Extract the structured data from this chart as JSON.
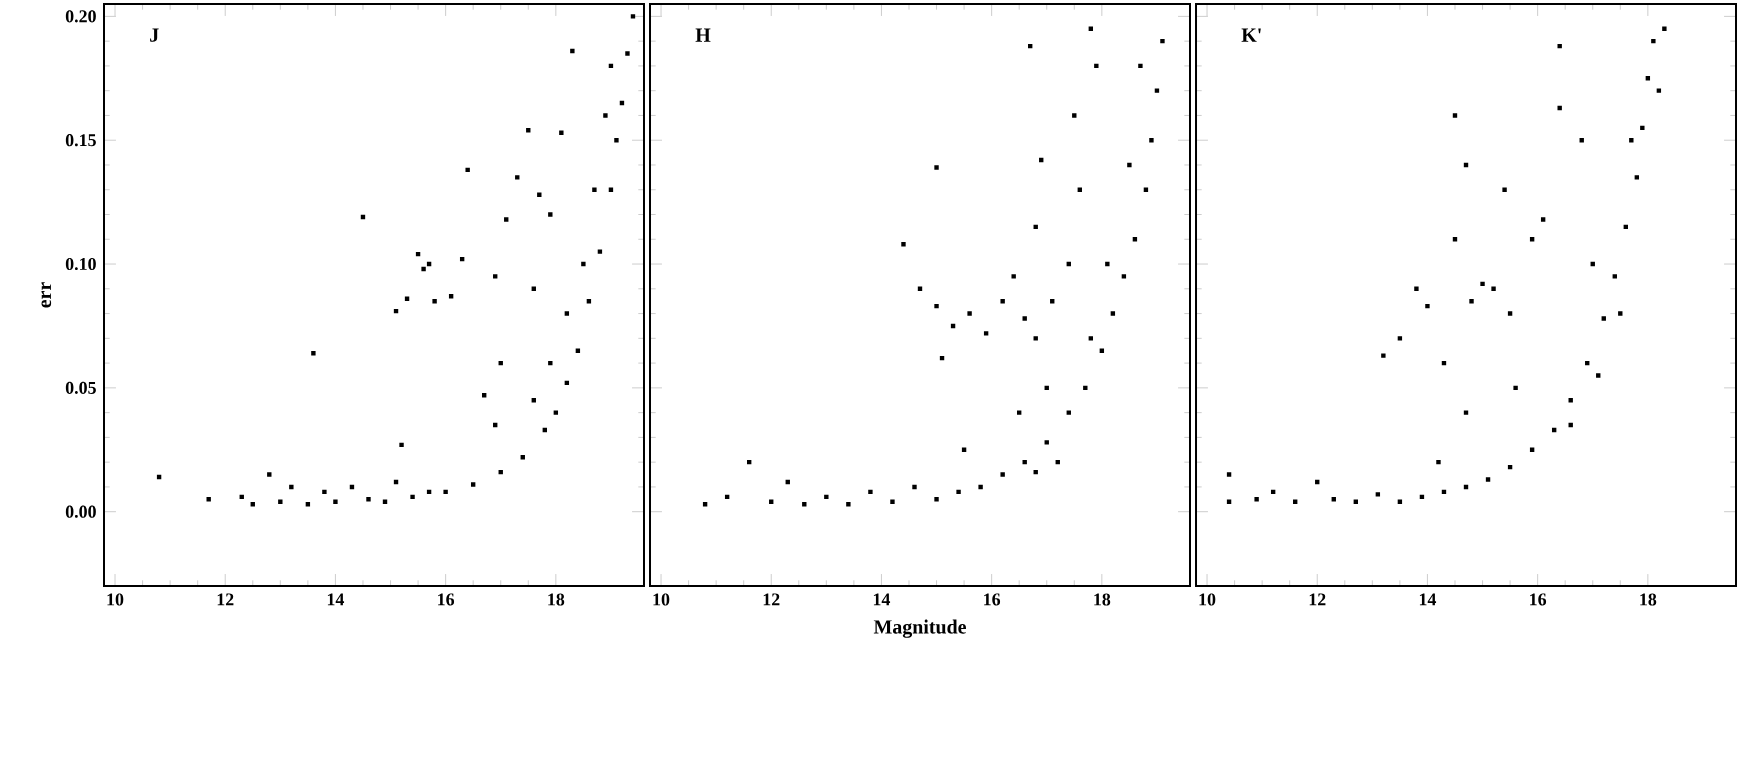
{
  "chart_data": [
    {
      "type": "scatter",
      "title": "J",
      "ylabel": "err",
      "xlim": [
        9.8,
        19.6
      ],
      "ylim": [
        -0.03,
        0.205
      ],
      "xticks": [
        10,
        12,
        14,
        16,
        18
      ],
      "yticks": [
        {
          "value": 0,
          "label": "0.00"
        },
        {
          "value": 0.05,
          "label": "0.05"
        },
        {
          "value": 0.1,
          "label": "0.10"
        },
        {
          "value": 0.15,
          "label": "0.15"
        },
        {
          "value": 0.2,
          "label": "0.20"
        }
      ],
      "marker": "square",
      "color": "#000000",
      "x": [
        10.8,
        11.7,
        13.6,
        14.5,
        15.1,
        15.3,
        15.5,
        15.6,
        15.7,
        15.8,
        16.1,
        16.3,
        16.4,
        15.2,
        16.7,
        16.9,
        17.1,
        17.5,
        18.1,
        18.3,
        17.3,
        17.7,
        17.9,
        17.6,
        17.0,
        16.9,
        12.3,
        12.5,
        12.8,
        13.0,
        13.2,
        13.5,
        13.8,
        14.0,
        14.3,
        14.6,
        14.9,
        15.1,
        15.4,
        15.7,
        16.0,
        16.5,
        17.0,
        17.4,
        17.8,
        18.0,
        18.2,
        18.4,
        18.6,
        18.8,
        19.0,
        19.1,
        19.2,
        19.3,
        19.4,
        17.6,
        17.9,
        18.2,
        18.5,
        18.7,
        18.9,
        19.0
      ],
      "values": [
        0.014,
        0.005,
        0.064,
        0.119,
        0.081,
        0.086,
        0.104,
        0.098,
        0.1,
        0.085,
        0.087,
        0.102,
        0.138,
        0.027,
        0.047,
        0.095,
        0.118,
        0.154,
        0.153,
        0.186,
        0.135,
        0.128,
        0.12,
        0.09,
        0.06,
        0.035,
        0.006,
        0.003,
        0.015,
        0.004,
        0.01,
        0.003,
        0.008,
        0.004,
        0.01,
        0.005,
        0.004,
        0.012,
        0.006,
        0.008,
        0.008,
        0.011,
        0.016,
        0.022,
        0.033,
        0.04,
        0.052,
        0.065,
        0.085,
        0.105,
        0.13,
        0.15,
        0.165,
        0.185,
        0.2,
        0.045,
        0.06,
        0.08,
        0.1,
        0.13,
        0.16,
        0.18
      ]
    },
    {
      "type": "scatter",
      "title": "H",
      "xlabel": "Magnitude",
      "tick_labels": "x",
      "xlim": [
        9.8,
        19.6
      ],
      "ylim": [
        -0.03,
        0.205
      ],
      "xticks": [
        10,
        12,
        14,
        16,
        18
      ],
      "yticks": [
        {
          "value": 0,
          "label": null
        },
        {
          "value": 0.05,
          "label": null
        },
        {
          "value": 0.1,
          "label": null
        },
        {
          "value": 0.15,
          "label": null
        },
        {
          "value": 0.2,
          "label": null
        }
      ],
      "marker": "square",
      "color": "#000000",
      "x": [
        10.8,
        11.2,
        11.6,
        12.0,
        12.3,
        12.6,
        13.0,
        13.4,
        13.8,
        14.2,
        14.6,
        15.0,
        15.4,
        15.8,
        16.2,
        16.6,
        17.0,
        17.4,
        17.7,
        18.0,
        18.2,
        18.4,
        18.6,
        18.8,
        18.9,
        19.0,
        19.1,
        17.8,
        18.1,
        18.5,
        18.7,
        17.2,
        16.8,
        14.4,
        14.7,
        15.0,
        15.1,
        15.3,
        15.6,
        15.9,
        16.2,
        16.4,
        16.6,
        16.8,
        17.1,
        17.4,
        16.8,
        15.0,
        16.9,
        17.6,
        17.5,
        17.9,
        17.8,
        16.7,
        17.0,
        16.5,
        15.5
      ],
      "values": [
        0.003,
        0.006,
        0.02,
        0.004,
        0.012,
        0.003,
        0.006,
        0.003,
        0.008,
        0.004,
        0.01,
        0.005,
        0.008,
        0.01,
        0.015,
        0.02,
        0.028,
        0.04,
        0.05,
        0.065,
        0.08,
        0.095,
        0.11,
        0.13,
        0.15,
        0.17,
        0.19,
        0.07,
        0.1,
        0.14,
        0.18,
        0.02,
        0.016,
        0.108,
        0.09,
        0.083,
        0.062,
        0.075,
        0.08,
        0.072,
        0.085,
        0.095,
        0.078,
        0.07,
        0.085,
        0.1,
        0.115,
        0.139,
        0.142,
        0.13,
        0.16,
        0.18,
        0.195,
        0.188,
        0.05,
        0.04,
        0.025
      ]
    },
    {
      "type": "scatter",
      "title": "K'",
      "tick_labels": "x",
      "xlim": [
        9.8,
        19.6
      ],
      "ylim": [
        -0.03,
        0.205
      ],
      "xticks": [
        10,
        12,
        14,
        16,
        18
      ],
      "yticks": [
        {
          "value": 0,
          "label": null
        },
        {
          "value": 0.05,
          "label": null
        },
        {
          "value": 0.1,
          "label": null
        },
        {
          "value": 0.15,
          "label": null
        },
        {
          "value": 0.2,
          "label": null
        }
      ],
      "marker": "square",
      "color": "#000000",
      "x": [
        10.4,
        10.4,
        10.9,
        11.2,
        11.6,
        12.0,
        12.3,
        12.7,
        13.1,
        13.5,
        13.9,
        14.3,
        14.7,
        15.1,
        15.5,
        15.9,
        16.3,
        16.6,
        16.9,
        17.2,
        17.4,
        17.6,
        17.8,
        17.9,
        18.0,
        18.1,
        18.3,
        17.5,
        17.1,
        16.6,
        17.7,
        18.2,
        13.2,
        13.5,
        13.8,
        14.0,
        14.3,
        14.5,
        14.5,
        14.7,
        14.8,
        15.0,
        15.2,
        15.4,
        15.5,
        15.9,
        16.1,
        16.4,
        16.4,
        16.8,
        15.6,
        14.7,
        14.2,
        17.0
      ],
      "values": [
        0.004,
        0.015,
        0.005,
        0.008,
        0.004,
        0.012,
        0.005,
        0.004,
        0.007,
        0.004,
        0.006,
        0.008,
        0.01,
        0.013,
        0.018,
        0.025,
        0.033,
        0.045,
        0.06,
        0.078,
        0.095,
        0.115,
        0.135,
        0.155,
        0.175,
        0.19,
        0.195,
        0.08,
        0.055,
        0.035,
        0.15,
        0.17,
        0.063,
        0.07,
        0.09,
        0.083,
        0.06,
        0.16,
        0.11,
        0.14,
        0.085,
        0.092,
        0.09,
        0.13,
        0.08,
        0.11,
        0.118,
        0.163,
        0.188,
        0.15,
        0.05,
        0.04,
        0.02,
        0.1
      ]
    }
  ]
}
